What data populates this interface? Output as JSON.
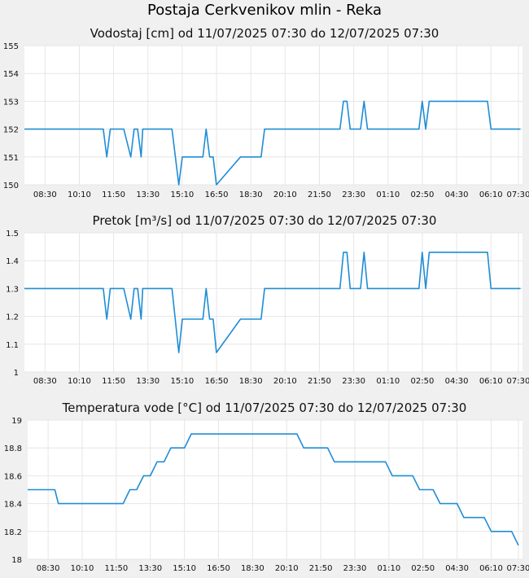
{
  "page": {
    "title": "Postaja Cerkvenikov mlin - Reka"
  },
  "chart_data": [
    {
      "type": "line",
      "title": "Vodostaj [cm] od 11/07/2025 07:30 do 12/07/2025 07:30",
      "xlabel": "",
      "ylabel": "",
      "grid": true,
      "color": "#1f8dd6",
      "ylim": [
        150,
        155
      ],
      "y_ticks": [
        "150",
        "151",
        "152",
        "153",
        "154",
        "155"
      ],
      "x_tick_labels": [
        "08:30",
        "10:10",
        "11:50",
        "13:30",
        "15:10",
        "16:50",
        "18:30",
        "20:10",
        "21:50",
        "23:30",
        "01:10",
        "02:50",
        "04:30",
        "06:10",
        "07:30"
      ],
      "x_tick_hours": [
        1,
        2.667,
        4.333,
        6,
        7.667,
        9.333,
        11,
        12.667,
        14.333,
        16,
        17.667,
        19.333,
        21,
        22.667,
        24
      ],
      "x_hours": [
        0,
        3.83,
        4.0,
        4.17,
        4.83,
        5.17,
        5.33,
        5.5,
        5.67,
        5.75,
        5.83,
        6.0,
        7.17,
        7.5,
        7.67,
        7.83,
        8.67,
        8.83,
        9.0,
        9.17,
        9.33,
        10.5,
        11.5,
        11.67,
        15.33,
        15.5,
        15.67,
        15.83,
        16.33,
        16.5,
        16.67,
        16.83,
        19.17,
        19.33,
        19.5,
        19.67,
        22.5,
        22.67,
        24.1
      ],
      "y_values": [
        152,
        152,
        151,
        152,
        152,
        151,
        152,
        152,
        151,
        152,
        152,
        152,
        152,
        150,
        151,
        151,
        151,
        152,
        151,
        151,
        150,
        151,
        151,
        152,
        152,
        153,
        153,
        152,
        152,
        153,
        152,
        152,
        152,
        153,
        152,
        153,
        153,
        152,
        152
      ]
    },
    {
      "type": "line",
      "title": "Pretok [m³/s] od 11/07/2025 07:30 do 12/07/2025 07:30",
      "xlabel": "",
      "ylabel": "",
      "grid": true,
      "color": "#1f8dd6",
      "ylim": [
        1.0,
        1.5
      ],
      "y_ticks": [
        "1",
        "1.1",
        "1.2",
        "1.3",
        "1.4",
        "1.5"
      ],
      "x_tick_labels": [
        "08:30",
        "10:10",
        "11:50",
        "13:30",
        "15:10",
        "16:50",
        "18:30",
        "20:10",
        "21:50",
        "23:30",
        "01:10",
        "02:50",
        "04:30",
        "06:10",
        "07:30"
      ],
      "x_tick_hours": [
        1,
        2.667,
        4.333,
        6,
        7.667,
        9.333,
        11,
        12.667,
        14.333,
        16,
        17.667,
        19.333,
        21,
        22.667,
        24
      ],
      "x_hours": [
        0,
        3.83,
        4.0,
        4.17,
        4.83,
        5.17,
        5.33,
        5.5,
        5.67,
        5.75,
        5.83,
        6.0,
        7.17,
        7.5,
        7.67,
        7.83,
        8.67,
        8.83,
        9.0,
        9.17,
        9.33,
        10.5,
        11.5,
        11.67,
        15.33,
        15.5,
        15.67,
        15.83,
        16.33,
        16.5,
        16.67,
        16.83,
        19.17,
        19.33,
        19.5,
        19.67,
        22.5,
        22.67,
        24.1
      ],
      "y_values": [
        1.3,
        1.3,
        1.19,
        1.3,
        1.3,
        1.19,
        1.3,
        1.3,
        1.19,
        1.3,
        1.3,
        1.3,
        1.3,
        1.07,
        1.19,
        1.19,
        1.19,
        1.3,
        1.19,
        1.19,
        1.07,
        1.19,
        1.19,
        1.3,
        1.3,
        1.43,
        1.43,
        1.3,
        1.3,
        1.43,
        1.3,
        1.3,
        1.3,
        1.43,
        1.3,
        1.43,
        1.43,
        1.3,
        1.3
      ]
    },
    {
      "type": "line",
      "title": "Temperatura vode [°C] od 11/07/2025 07:30 do 12/07/2025 07:30",
      "xlabel": "",
      "ylabel": "",
      "grid": true,
      "color": "#1f8dd6",
      "ylim": [
        18.0,
        19.0
      ],
      "y_ticks": [
        "18",
        "18.2",
        "18.4",
        "18.6",
        "18.8",
        "19"
      ],
      "x_tick_labels": [
        "08:30",
        "10:10",
        "11:50",
        "13:30",
        "15:10",
        "16:50",
        "18:30",
        "20:10",
        "21:50",
        "23:30",
        "01:10",
        "02:50",
        "04:30",
        "06:10",
        "07:30"
      ],
      "x_tick_hours": [
        1,
        2.667,
        4.333,
        6,
        7.667,
        9.333,
        11,
        12.667,
        14.333,
        16,
        17.667,
        19.333,
        21,
        22.667,
        24
      ],
      "x_hours": [
        0,
        1.33,
        1.5,
        4.67,
        5.0,
        5.33,
        5.67,
        6.0,
        6.33,
        6.67,
        7.0,
        7.33,
        7.67,
        8.0,
        8.33,
        13.17,
        13.5,
        14.67,
        15.0,
        17.5,
        17.83,
        18.83,
        19.17,
        19.83,
        20.17,
        21.0,
        21.33,
        22.33,
        22.67,
        23.67,
        24.0
      ],
      "y_values": [
        18.5,
        18.5,
        18.4,
        18.4,
        18.5,
        18.5,
        18.6,
        18.6,
        18.7,
        18.7,
        18.8,
        18.8,
        18.8,
        18.9,
        18.9,
        18.9,
        18.8,
        18.8,
        18.7,
        18.7,
        18.6,
        18.6,
        18.5,
        18.5,
        18.4,
        18.4,
        18.3,
        18.3,
        18.2,
        18.2,
        18.1
      ]
    }
  ]
}
